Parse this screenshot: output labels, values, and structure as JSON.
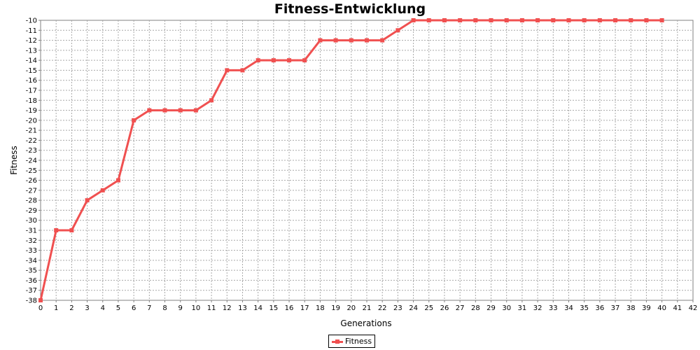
{
  "chart_data": {
    "type": "line",
    "title": "Fitness-Entwicklung",
    "xlabel": "Generations",
    "ylabel": "Fitness",
    "xlim": [
      0,
      42
    ],
    "ylim": [
      -38,
      -10
    ],
    "x_ticks": [
      0,
      1,
      2,
      3,
      4,
      5,
      6,
      7,
      8,
      9,
      10,
      11,
      12,
      13,
      14,
      15,
      16,
      17,
      18,
      19,
      20,
      21,
      22,
      23,
      24,
      25,
      26,
      27,
      28,
      29,
      30,
      31,
      32,
      33,
      34,
      35,
      36,
      37,
      38,
      39,
      40,
      41,
      42
    ],
    "y_ticks": [
      -10,
      -11,
      -12,
      -13,
      -14,
      -15,
      -16,
      -17,
      -18,
      -19,
      -20,
      -21,
      -22,
      -23,
      -24,
      -25,
      -26,
      -27,
      -28,
      -29,
      -30,
      -31,
      -32,
      -33,
      -34,
      -35,
      -36,
      -37,
      -38
    ],
    "grid": true,
    "legend_position": "bottom-center",
    "series": [
      {
        "name": "Fitness",
        "color": "#f05050",
        "marker": "square",
        "x": [
          0,
          1,
          2,
          3,
          4,
          5,
          6,
          7,
          8,
          9,
          10,
          11,
          12,
          13,
          14,
          15,
          16,
          17,
          18,
          19,
          20,
          21,
          22,
          23,
          24,
          25,
          26,
          27,
          28,
          29,
          30,
          31,
          32,
          33,
          34,
          35,
          36,
          37,
          38,
          39,
          40
        ],
        "y": [
          -38,
          -31,
          -31,
          -28,
          -27,
          -26,
          -20,
          -19,
          -19,
          -19,
          -19,
          -18,
          -15,
          -15,
          -14,
          -14,
          -14,
          -14,
          -12,
          -12,
          -12,
          -12,
          -12,
          -11,
          -10,
          -10,
          -10,
          -10,
          -10,
          -10,
          -10,
          -10,
          -10,
          -10,
          -10,
          -10,
          -10,
          -10,
          -10,
          -10,
          -10
        ]
      }
    ]
  }
}
